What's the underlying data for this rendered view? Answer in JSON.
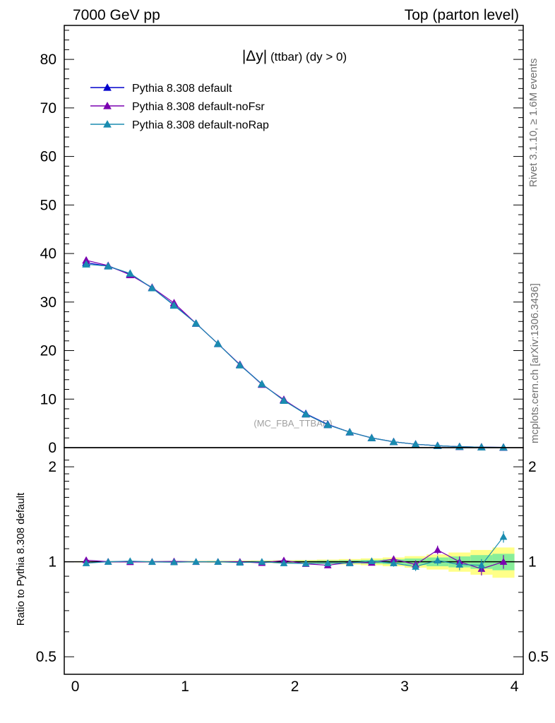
{
  "header": {
    "left": "7000 GeV pp",
    "right": "Top (parton level)"
  },
  "side_labels": {
    "rivet": "Rivet 3.1.10, ≥ 1.6M events",
    "mcplots": "mcplots.cern.ch [arXiv:1306.3436]"
  },
  "watermark": "(MC_FBA_TTBAR)",
  "colors": {
    "default": "#0000cc",
    "noFsr": "#7a00b0",
    "noRap": "#1a8cb0",
    "band_yellow": "#ffff88",
    "band_green": "#88ee99"
  },
  "chart_data": [
    {
      "type": "line",
      "panel": "main",
      "title": "|Δy| (ttbar) (dy > 0)",
      "title_symbol": "|Δy|",
      "title_rest": " (ttbar) (dy > 0)",
      "xlabel": "",
      "ylabel": "",
      "xlim": [
        -0.1,
        4.08
      ],
      "ylim": [
        0,
        87
      ],
      "xticks": [
        0,
        1,
        2,
        3,
        4
      ],
      "yticks": [
        0,
        10,
        20,
        30,
        40,
        50,
        60,
        70,
        80
      ],
      "grid": false,
      "legend_position": "top-left",
      "x": [
        0.1,
        0.3,
        0.5,
        0.7,
        0.9,
        1.1,
        1.3,
        1.5,
        1.7,
        1.9,
        2.1,
        2.3,
        2.5,
        2.7,
        2.9,
        3.1,
        3.3,
        3.5,
        3.7,
        3.9
      ],
      "series": [
        {
          "name": "Pythia 8.308 default",
          "color_key": "default",
          "values": [
            38.1,
            37.4,
            35.7,
            32.9,
            29.4,
            25.6,
            21.4,
            17.1,
            13.1,
            9.8,
            7.0,
            4.8,
            3.2,
            2.0,
            1.2,
            0.7,
            0.4,
            0.2,
            0.1,
            0.05
          ]
        },
        {
          "name": "Pythia 8.308 default-noFsr",
          "color_key": "noFsr",
          "values": [
            38.6,
            37.5,
            35.6,
            33.0,
            29.8,
            25.6,
            21.4,
            17.1,
            13.0,
            9.9,
            6.9,
            4.7,
            3.2,
            2.0,
            1.2,
            0.7,
            0.4,
            0.2,
            0.1,
            0.05
          ]
        },
        {
          "name": "Pythia 8.308 default-noRap",
          "color_key": "noRap",
          "values": [
            37.8,
            37.4,
            35.9,
            32.9,
            29.3,
            25.6,
            21.4,
            17.0,
            13.1,
            9.7,
            6.9,
            4.7,
            3.2,
            2.0,
            1.2,
            0.7,
            0.4,
            0.2,
            0.1,
            0.06
          ]
        }
      ]
    },
    {
      "type": "line",
      "panel": "ratio",
      "ylabel": "Ratio to Pythia 8.308 default",
      "xlim": [
        -0.1,
        4.08
      ],
      "ylim": [
        0.44,
        2.3
      ],
      "log_y": true,
      "xticks": [
        0,
        1,
        2,
        3,
        4
      ],
      "yticks": [
        0.5,
        1,
        2
      ],
      "ytick_labels": [
        "0.5",
        "1",
        "2"
      ],
      "x": [
        0.1,
        0.3,
        0.5,
        0.7,
        0.9,
        1.1,
        1.3,
        1.5,
        1.7,
        1.9,
        2.1,
        2.3,
        2.5,
        2.7,
        2.9,
        3.1,
        3.3,
        3.5,
        3.7,
        3.9
      ],
      "band_yellow": [
        0.004,
        0.004,
        0.005,
        0.005,
        0.006,
        0.006,
        0.007,
        0.008,
        0.009,
        0.011,
        0.013,
        0.016,
        0.02,
        0.025,
        0.032,
        0.042,
        0.055,
        0.07,
        0.09,
        0.11
      ],
      "band_green": [
        0.002,
        0.002,
        0.003,
        0.003,
        0.003,
        0.003,
        0.004,
        0.004,
        0.005,
        0.006,
        0.007,
        0.009,
        0.011,
        0.014,
        0.018,
        0.024,
        0.032,
        0.04,
        0.05,
        0.06
      ],
      "series": [
        {
          "name": "Pythia 8.308 default-noFsr",
          "color_key": "noFsr",
          "values": [
            1.012,
            1.001,
            0.998,
            1.0,
            1.003,
            0.999,
            1.0,
            1.0,
            0.992,
            1.01,
            0.985,
            0.975,
            0.995,
            0.993,
            1.02,
            0.98,
            1.09,
            1.0,
            0.95,
            1.0
          ],
          "errors": [
            0.004,
            0.004,
            0.004,
            0.004,
            0.005,
            0.005,
            0.006,
            0.007,
            0.008,
            0.01,
            0.012,
            0.014,
            0.017,
            0.02,
            0.025,
            0.03,
            0.035,
            0.04,
            0.045,
            0.05
          ]
        },
        {
          "name": "Pythia 8.308 default-noRap",
          "color_key": "noRap",
          "values": [
            0.99,
            1.0,
            1.005,
            0.999,
            0.997,
            1.0,
            1.0,
            0.994,
            1.0,
            0.99,
            0.988,
            0.99,
            0.99,
            1.005,
            0.99,
            0.965,
            1.01,
            0.98,
            0.975,
            1.2
          ],
          "errors": [
            0.004,
            0.004,
            0.004,
            0.004,
            0.005,
            0.005,
            0.006,
            0.007,
            0.008,
            0.01,
            0.012,
            0.014,
            0.017,
            0.02,
            0.025,
            0.03,
            0.035,
            0.04,
            0.045,
            0.05
          ]
        }
      ]
    }
  ]
}
